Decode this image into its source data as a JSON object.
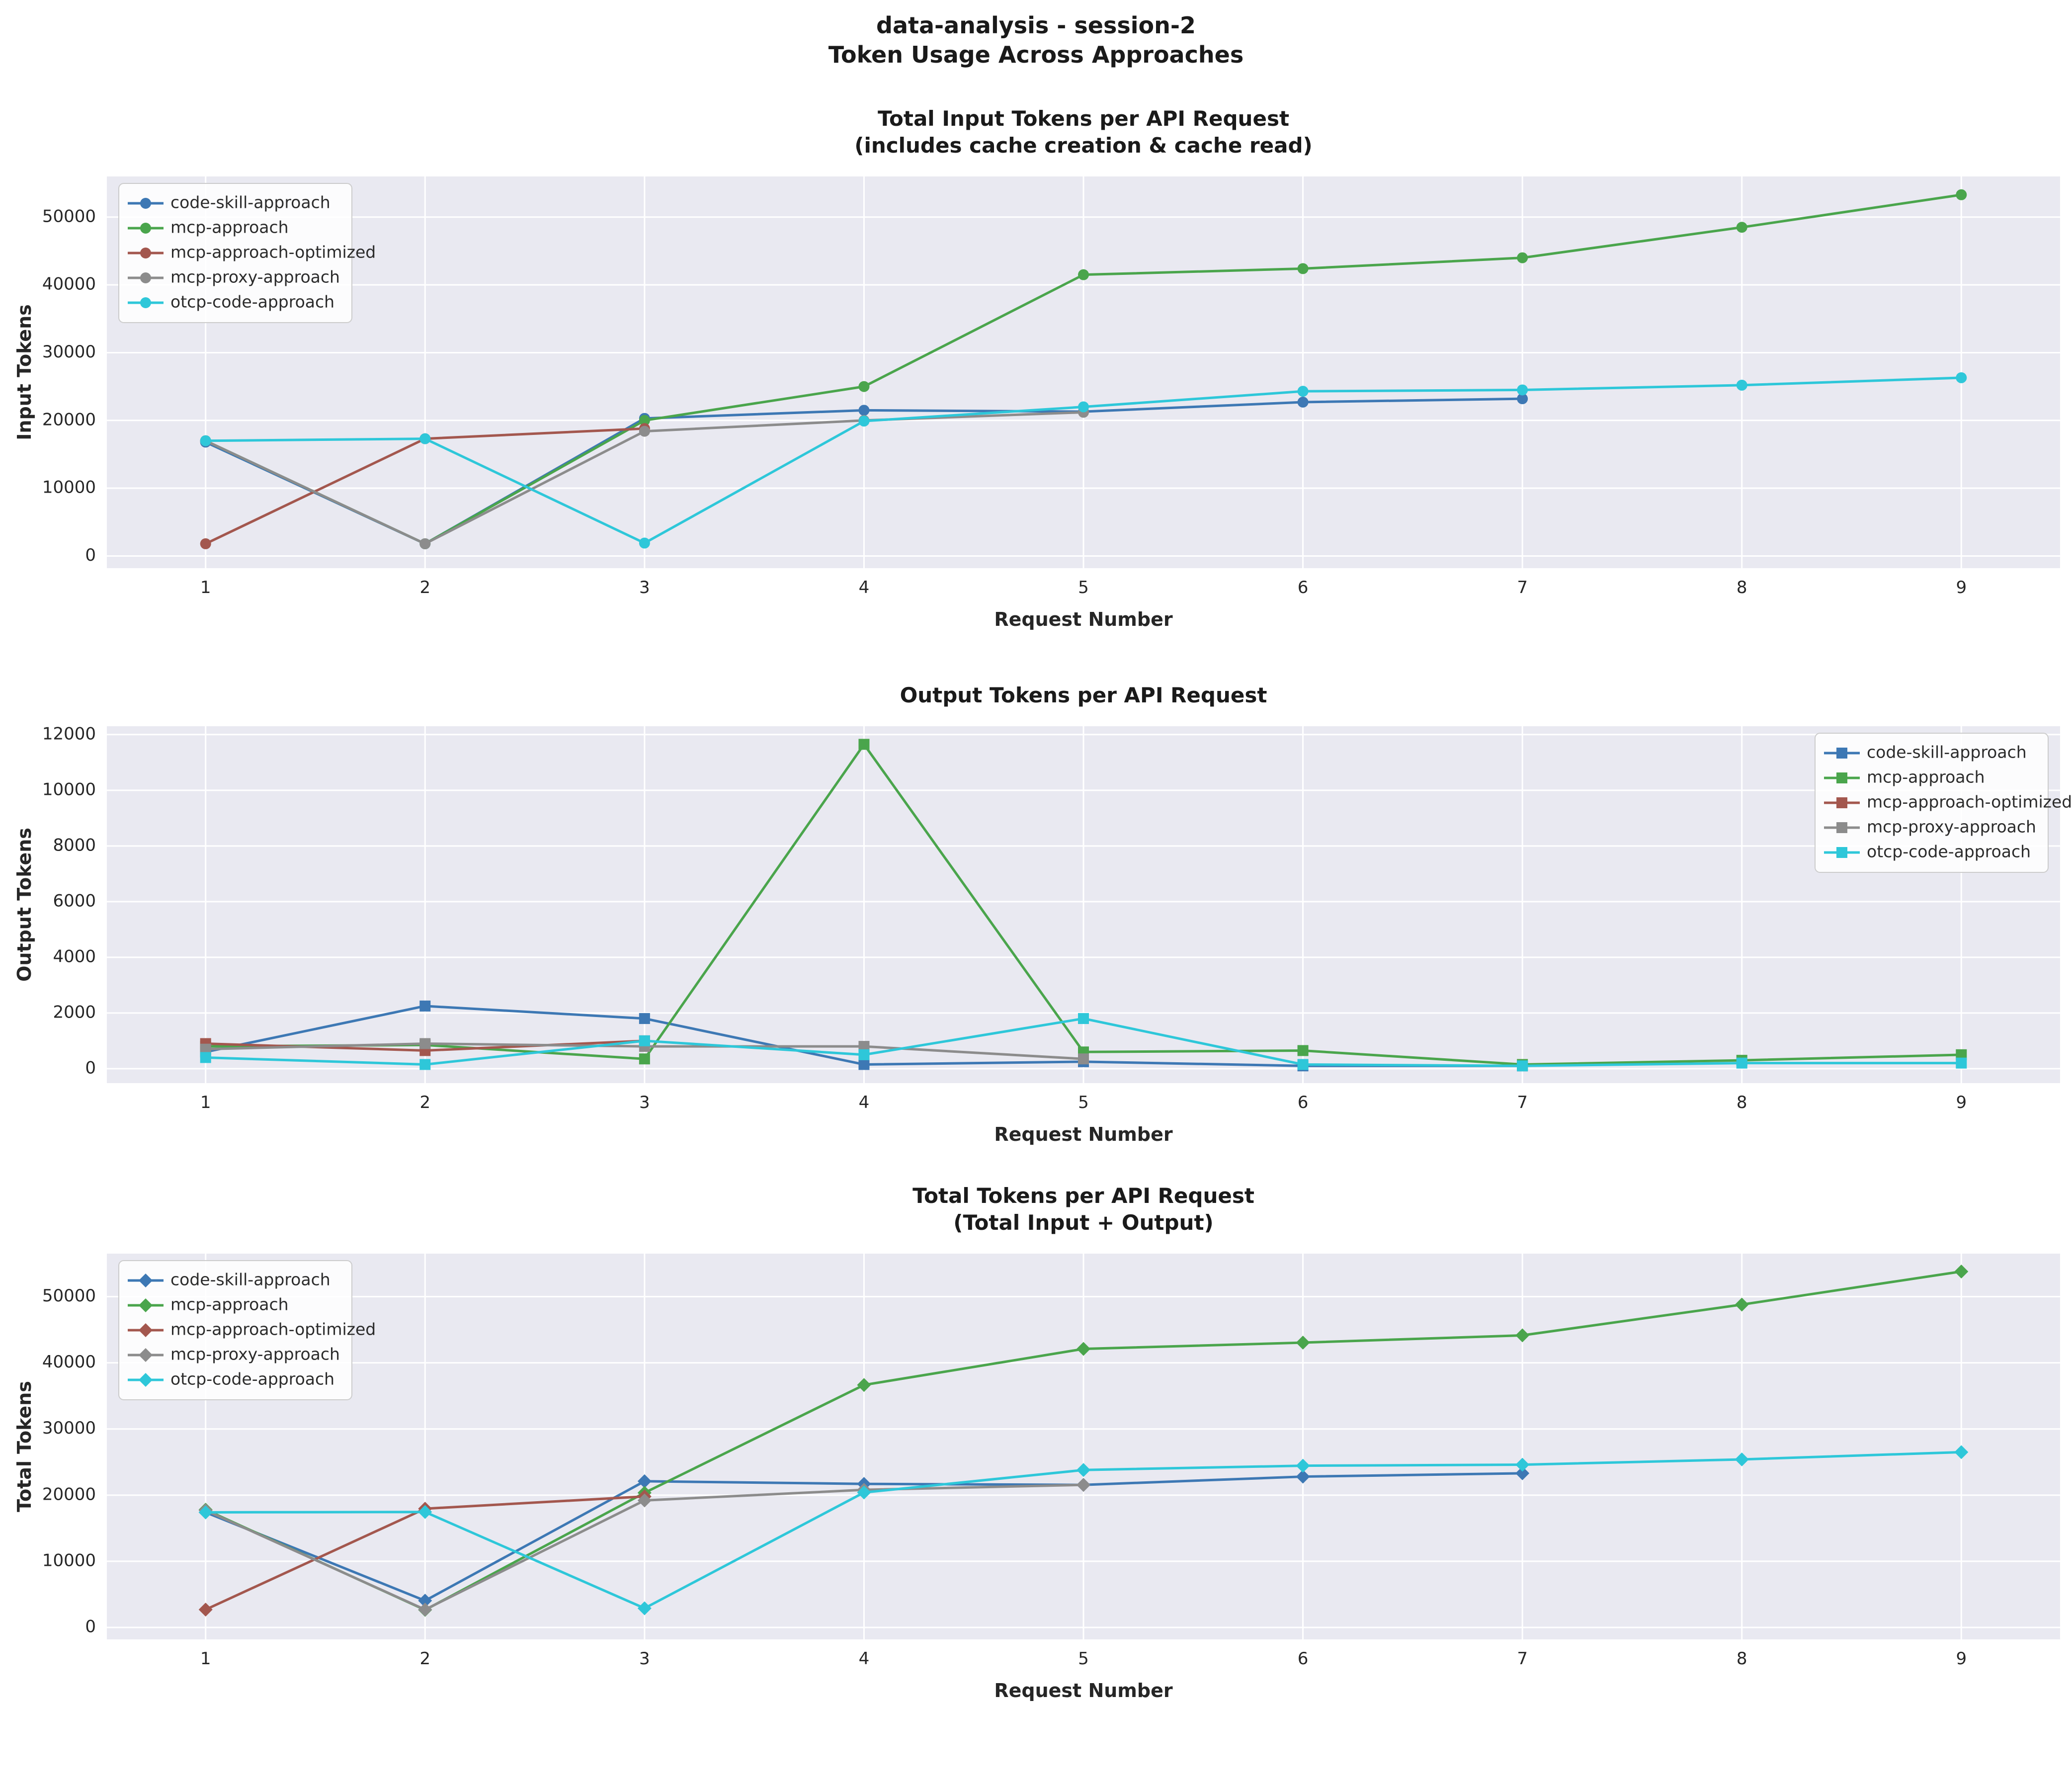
{
  "suptitle": {
    "line1": "data-analysis - session-2",
    "line2": "Token Usage Across Approaches"
  },
  "style": {
    "plot_bg": "#e9e9f1",
    "grid": "#ffffff",
    "text": "#262626",
    "title": "#1a1a1a",
    "legend_bg": "rgba(255,255,255,0.85)",
    "legend_border": "#cccccc",
    "series_colors": {
      "code-skill-approach": "#3d78b4",
      "mcp-approach": "#4aa54c",
      "mcp-approach-optimized": "#a3574e",
      "mcp-proxy-approach": "#8c8c8c",
      "otcp-code-approach": "#2ec7d9"
    }
  },
  "chart_data": [
    {
      "type": "line",
      "id": "input-tokens",
      "title_lines": [
        "Total Input Tokens per API Request",
        "(includes cache creation & cache read)"
      ],
      "xlabel": "Request Number",
      "ylabel": "Input Tokens",
      "marker": "circle",
      "legend_position": "top-left",
      "x": [
        1,
        2,
        3,
        4,
        5,
        6,
        7,
        8,
        9
      ],
      "xticks": [
        1,
        2,
        3,
        4,
        5,
        6,
        7,
        8,
        9
      ],
      "yticks": [
        0,
        10000,
        20000,
        30000,
        40000,
        50000
      ],
      "ylim": [
        -1800,
        56000
      ],
      "xlim": [
        0.55,
        9.45
      ],
      "series": [
        {
          "name": "code-skill-approach",
          "values": [
            16800,
            1800,
            20300,
            21500,
            21300,
            22700,
            23200
          ]
        },
        {
          "name": "mcp-approach",
          "values": [
            17000,
            1800,
            20000,
            25000,
            41500,
            42400,
            44000,
            48500,
            53300
          ]
        },
        {
          "name": "mcp-approach-optimized",
          "values": [
            1800,
            17300,
            18800
          ]
        },
        {
          "name": "mcp-proxy-approach",
          "values": [
            17000,
            1800,
            18400,
            20000,
            21200
          ]
        },
        {
          "name": "otcp-code-approach",
          "values": [
            17000,
            17300,
            1900,
            19900,
            22000,
            24300,
            24500,
            25200,
            26300
          ]
        }
      ]
    },
    {
      "type": "line",
      "id": "output-tokens",
      "title_lines": [
        "Output Tokens per API Request"
      ],
      "xlabel": "Request Number",
      "ylabel": "Output Tokens",
      "marker": "square",
      "legend_position": "top-right",
      "x": [
        1,
        2,
        3,
        4,
        5,
        6,
        7,
        8,
        9
      ],
      "xticks": [
        1,
        2,
        3,
        4,
        5,
        6,
        7,
        8,
        9
      ],
      "yticks": [
        0,
        2000,
        4000,
        6000,
        8000,
        10000,
        12000
      ],
      "ylim": [
        -520,
        12300
      ],
      "xlim": [
        0.55,
        9.45
      ],
      "series": [
        {
          "name": "code-skill-approach",
          "values": [
            600,
            2250,
            1800,
            150,
            250,
            100,
            100
          ]
        },
        {
          "name": "mcp-approach",
          "values": [
            800,
            850,
            350,
            11650,
            600,
            650,
            150,
            300,
            500
          ]
        },
        {
          "name": "mcp-approach-optimized",
          "values": [
            900,
            650,
            1000
          ]
        },
        {
          "name": "mcp-proxy-approach",
          "values": [
            700,
            900,
            800,
            800,
            350
          ]
        },
        {
          "name": "otcp-code-approach",
          "values": [
            400,
            150,
            1000,
            500,
            1800,
            150,
            100,
            200,
            200
          ]
        }
      ]
    },
    {
      "type": "line",
      "id": "total-tokens",
      "title_lines": [
        "Total Tokens per API Request",
        "(Total Input + Output)"
      ],
      "xlabel": "Request Number",
      "ylabel": "Total Tokens",
      "marker": "diamond",
      "legend_position": "top-left",
      "x": [
        1,
        2,
        3,
        4,
        5,
        6,
        7,
        8,
        9
      ],
      "xticks": [
        1,
        2,
        3,
        4,
        5,
        6,
        7,
        8,
        9
      ],
      "yticks": [
        0,
        10000,
        20000,
        30000,
        40000,
        50000
      ],
      "ylim": [
        -1800,
        56500
      ],
      "xlim": [
        0.55,
        9.45
      ],
      "series": [
        {
          "name": "code-skill-approach",
          "values": [
            17400,
            4050,
            22100,
            21700,
            21550,
            22800,
            23300
          ]
        },
        {
          "name": "mcp-approach",
          "values": [
            17800,
            2650,
            20350,
            36650,
            42100,
            43050,
            44150,
            48800,
            53800
          ]
        },
        {
          "name": "mcp-approach-optimized",
          "values": [
            2700,
            17950,
            19800
          ]
        },
        {
          "name": "mcp-proxy-approach",
          "values": [
            17700,
            2700,
            19200,
            20800,
            21550
          ]
        },
        {
          "name": "otcp-code-approach",
          "values": [
            17400,
            17450,
            2900,
            20400,
            23800,
            24450,
            24600,
            25400,
            26500
          ]
        }
      ]
    }
  ]
}
